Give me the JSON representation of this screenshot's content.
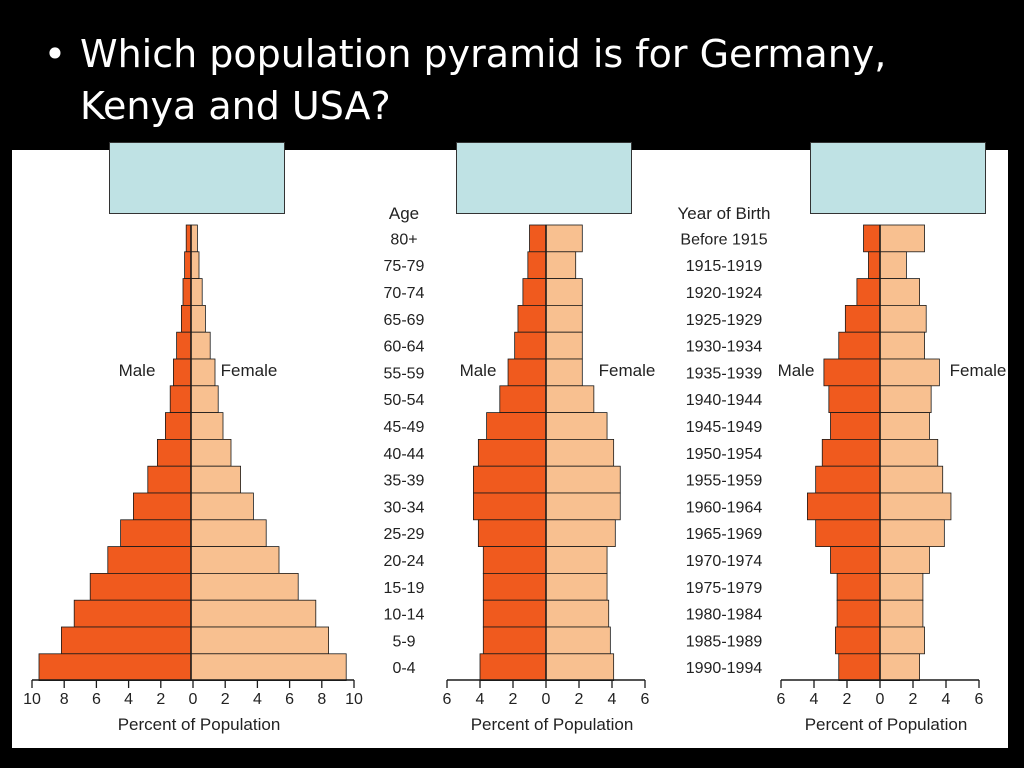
{
  "slide": {
    "bullet": "•",
    "question_line1": "Which population pyramid is for Germany,",
    "question_line2": "Kenya and USA?"
  },
  "colors": {
    "background": "#000000",
    "panel": "#ffffff",
    "male": "#f05a1e",
    "female": "#f8c090",
    "answer_box": "#bfe2e4"
  },
  "chart_data": [
    {
      "type": "bar",
      "orientation": "horizontal-population-pyramid",
      "categories": [
        "80+",
        "75-79",
        "70-74",
        "65-69",
        "60-64",
        "55-59",
        "50-54",
        "45-49",
        "40-44",
        "35-39",
        "30-34",
        "25-29",
        "20-24",
        "15-19",
        "10-14",
        "5-9",
        "0-4"
      ],
      "side_labels": {
        "male": "Male",
        "female": "Female"
      },
      "series": [
        {
          "name": "Male",
          "values": [
            0.3,
            0.4,
            0.5,
            0.6,
            0.9,
            1.1,
            1.3,
            1.6,
            2.1,
            2.7,
            3.6,
            4.4,
            5.2,
            6.3,
            7.3,
            8.1,
            9.5
          ]
        },
        {
          "name": "Female",
          "values": [
            0.4,
            0.5,
            0.7,
            0.9,
            1.2,
            1.5,
            1.7,
            2.0,
            2.5,
            3.1,
            3.9,
            4.7,
            5.5,
            6.7,
            7.8,
            8.6,
            9.7
          ]
        }
      ],
      "xlim": [
        -10,
        10
      ],
      "xticks": [
        "10",
        "8",
        "6",
        "4",
        "2",
        "0",
        "2",
        "4",
        "6",
        "8",
        "10"
      ],
      "xlabel": "Percent of Population",
      "ylabel": "Age",
      "grid": false
    },
    {
      "type": "bar",
      "orientation": "horizontal-population-pyramid",
      "categories": [
        "Before 1915",
        "1915-1919",
        "1920-1924",
        "1925-1929",
        "1930-1934",
        "1935-1939",
        "1940-1944",
        "1945-1949",
        "1950-1954",
        "1955-1959",
        "1960-1964",
        "1965-1969",
        "1970-1974",
        "1975-1979",
        "1980-1984",
        "1985-1989",
        "1990-1994"
      ],
      "side_labels": {
        "male": "Male",
        "female": "Female"
      },
      "series": [
        {
          "name": "Male",
          "values": [
            1.0,
            1.1,
            1.4,
            1.7,
            1.9,
            2.3,
            2.8,
            3.6,
            4.1,
            4.4,
            4.4,
            4.1,
            3.8,
            3.8,
            3.8,
            3.8,
            4.0
          ]
        },
        {
          "name": "Female",
          "values": [
            2.2,
            1.8,
            2.2,
            2.2,
            2.2,
            2.2,
            2.9,
            3.7,
            4.1,
            4.5,
            4.5,
            4.2,
            3.7,
            3.7,
            3.8,
            3.9,
            4.1
          ]
        }
      ],
      "xlim": [
        -6,
        6
      ],
      "xticks": [
        "6",
        "4",
        "2",
        "0",
        "2",
        "4",
        "6"
      ],
      "xlabel": "Percent of Population",
      "ylabel": "Year of Birth",
      "grid": false
    },
    {
      "type": "bar",
      "orientation": "horizontal-population-pyramid",
      "categories": [
        "80+",
        "75-79",
        "70-74",
        "65-69",
        "60-64",
        "55-59",
        "50-54",
        "45-49",
        "40-44",
        "35-39",
        "30-34",
        "25-29",
        "20-24",
        "15-19",
        "10-14",
        "5-9",
        "0-4"
      ],
      "side_labels": {
        "male": "Male",
        "female": "Female"
      },
      "series": [
        {
          "name": "Male",
          "values": [
            1.0,
            0.7,
            1.4,
            2.1,
            2.5,
            3.4,
            3.1,
            3.0,
            3.5,
            3.9,
            4.4,
            3.9,
            3.0,
            2.6,
            2.6,
            2.7,
            2.5
          ]
        },
        {
          "name": "Female",
          "values": [
            2.7,
            1.6,
            2.4,
            2.8,
            2.7,
            3.6,
            3.1,
            3.0,
            3.5,
            3.8,
            4.3,
            3.9,
            3.0,
            2.6,
            2.6,
            2.7,
            2.4
          ]
        }
      ],
      "xlim": [
        -6,
        6
      ],
      "xticks": [
        "6",
        "4",
        "2",
        "0",
        "2",
        "4",
        "6"
      ],
      "xlabel": "Percent of Population",
      "grid": false
    }
  ]
}
